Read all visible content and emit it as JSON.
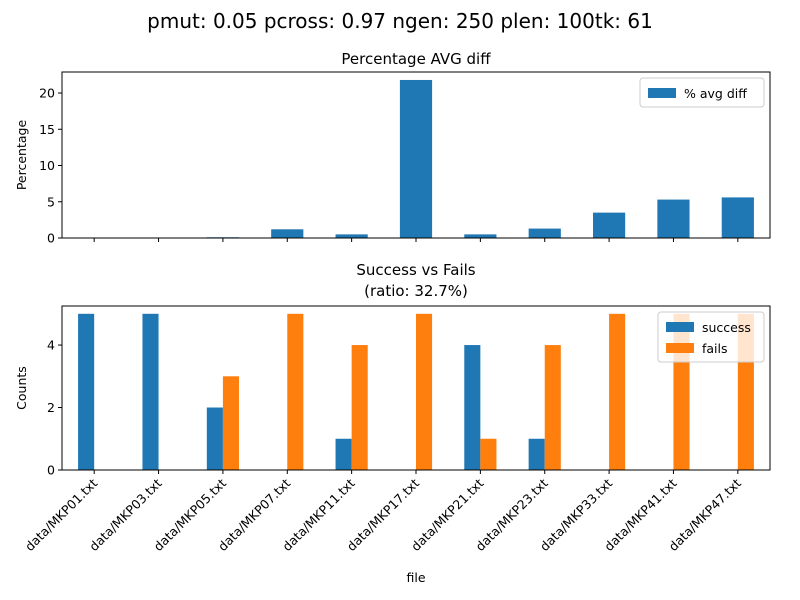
{
  "figure": {
    "suptitle": "pmut: 0.05 pcross: 0.97 ngen: 250 plen: 100tk: 61"
  },
  "chart_data": [
    {
      "type": "bar",
      "title": "Percentage AVG diff",
      "subtitle": "",
      "xlabel": "",
      "ylabel": "Percentage",
      "categories": [
        "data/MKP01.txt",
        "data/MKP03.txt",
        "data/MKP05.txt",
        "data/MKP07.txt",
        "data/MKP11.txt",
        "data/MKP17.txt",
        "data/MKP21.txt",
        "data/MKP23.txt",
        "data/MKP33.txt",
        "data/MKP41.txt",
        "data/MKP47.txt"
      ],
      "series": [
        {
          "name": "% avg diff",
          "color": "#1f77b4",
          "values": [
            0.0,
            0.0,
            0.1,
            1.2,
            0.5,
            21.8,
            0.5,
            1.3,
            3.5,
            5.3,
            5.6
          ]
        }
      ],
      "ylim": [
        0,
        22.9
      ],
      "yticks": [
        0,
        5,
        10,
        15,
        20
      ],
      "show_xticklabels": false,
      "legend": {
        "placement": "upper right"
      },
      "grid": false
    },
    {
      "type": "bar",
      "title": "Success vs Fails",
      "subtitle": "(ratio: 32.7%)",
      "xlabel": "file",
      "ylabel": "Counts",
      "categories": [
        "data/MKP01.txt",
        "data/MKP03.txt",
        "data/MKP05.txt",
        "data/MKP07.txt",
        "data/MKP11.txt",
        "data/MKP17.txt",
        "data/MKP21.txt",
        "data/MKP23.txt",
        "data/MKP33.txt",
        "data/MKP41.txt",
        "data/MKP47.txt"
      ],
      "series": [
        {
          "name": "success",
          "color": "#1f77b4",
          "values": [
            5,
            5,
            2,
            0,
            1,
            0,
            4,
            1,
            0,
            0,
            0
          ]
        },
        {
          "name": "fails",
          "color": "#ff7f0e",
          "values": [
            0,
            0,
            3,
            5,
            4,
            5,
            1,
            4,
            5,
            5,
            5
          ]
        }
      ],
      "ylim": [
        0,
        5.25
      ],
      "yticks": [
        0,
        2,
        4
      ],
      "show_xticklabels": true,
      "xtick_rotation": 45,
      "legend": {
        "placement": "upper right"
      },
      "grid": false
    }
  ]
}
